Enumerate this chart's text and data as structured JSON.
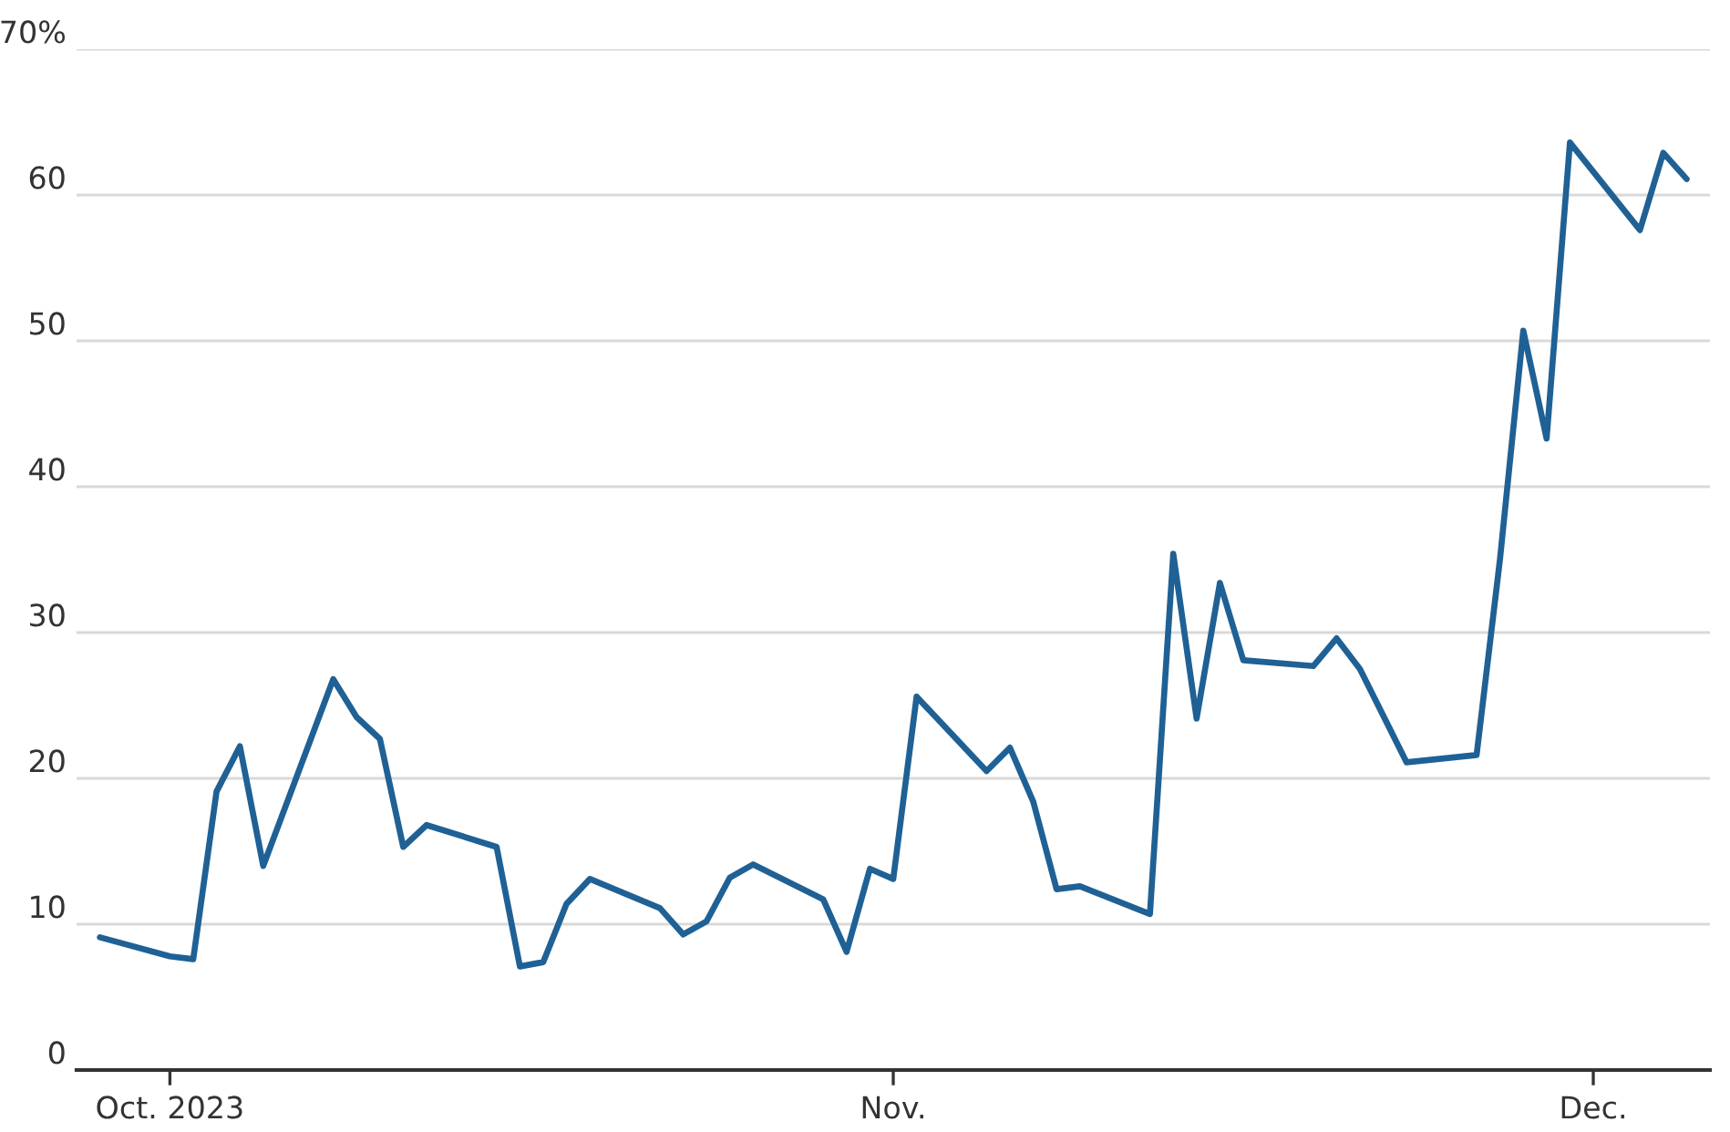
{
  "chart_data": {
    "type": "line",
    "x": [
      "2023-09-28",
      "2023-10-01",
      "2023-10-02",
      "2023-10-03",
      "2023-10-04",
      "2023-10-05",
      "2023-10-08",
      "2023-10-09",
      "2023-10-10",
      "2023-10-11",
      "2023-10-12",
      "2023-10-15",
      "2023-10-16",
      "2023-10-17",
      "2023-10-18",
      "2023-10-19",
      "2023-10-22",
      "2023-10-23",
      "2023-10-24",
      "2023-10-25",
      "2023-10-26",
      "2023-10-29",
      "2023-10-30",
      "2023-10-31",
      "2023-11-01",
      "2023-11-02",
      "2023-11-05",
      "2023-11-06",
      "2023-11-07",
      "2023-11-08",
      "2023-11-09",
      "2023-11-12",
      "2023-11-13",
      "2023-11-14",
      "2023-11-15",
      "2023-11-16",
      "2023-11-19",
      "2023-11-20",
      "2023-11-21",
      "2023-11-23",
      "2023-11-26",
      "2023-11-27",
      "2023-11-28",
      "2023-11-29",
      "2023-11-30",
      "2023-12-03",
      "2023-12-04",
      "2023-12-05"
    ],
    "series": [
      {
        "color": "#1f6195",
        "values": [
          9.1,
          7.8,
          7.6,
          19.1,
          22.2,
          14.0,
          26.8,
          24.2,
          22.7,
          15.3,
          16.8,
          15.3,
          7.1,
          7.4,
          11.4,
          13.1,
          11.1,
          9.3,
          10.2,
          13.2,
          14.1,
          11.7,
          8.1,
          13.8,
          13.1,
          25.6,
          20.5,
          22.1,
          18.4,
          12.4,
          12.6,
          10.7,
          35.4,
          24.1,
          33.4,
          28.1,
          27.7,
          29.6,
          27.5,
          21.1,
          21.6,
          35.0,
          50.7,
          43.3,
          63.6,
          57.6,
          62.9,
          61.1
        ]
      }
    ],
    "xlim": [
      "2023-09-27",
      "2023-12-06"
    ],
    "xticks": [
      {
        "value": "2023-10-01",
        "label": "Oct. 2023"
      },
      {
        "value": "2023-11-01",
        "label": "Nov."
      },
      {
        "value": "2023-12-01",
        "label": "Dec."
      }
    ],
    "ylim": [
      0,
      70
    ],
    "yticks": [
      0,
      10,
      20,
      30,
      40,
      50,
      60,
      {
        "value": 70,
        "label": "70%"
      }
    ],
    "grid": "y",
    "line_style": "solid",
    "marker": "none"
  }
}
